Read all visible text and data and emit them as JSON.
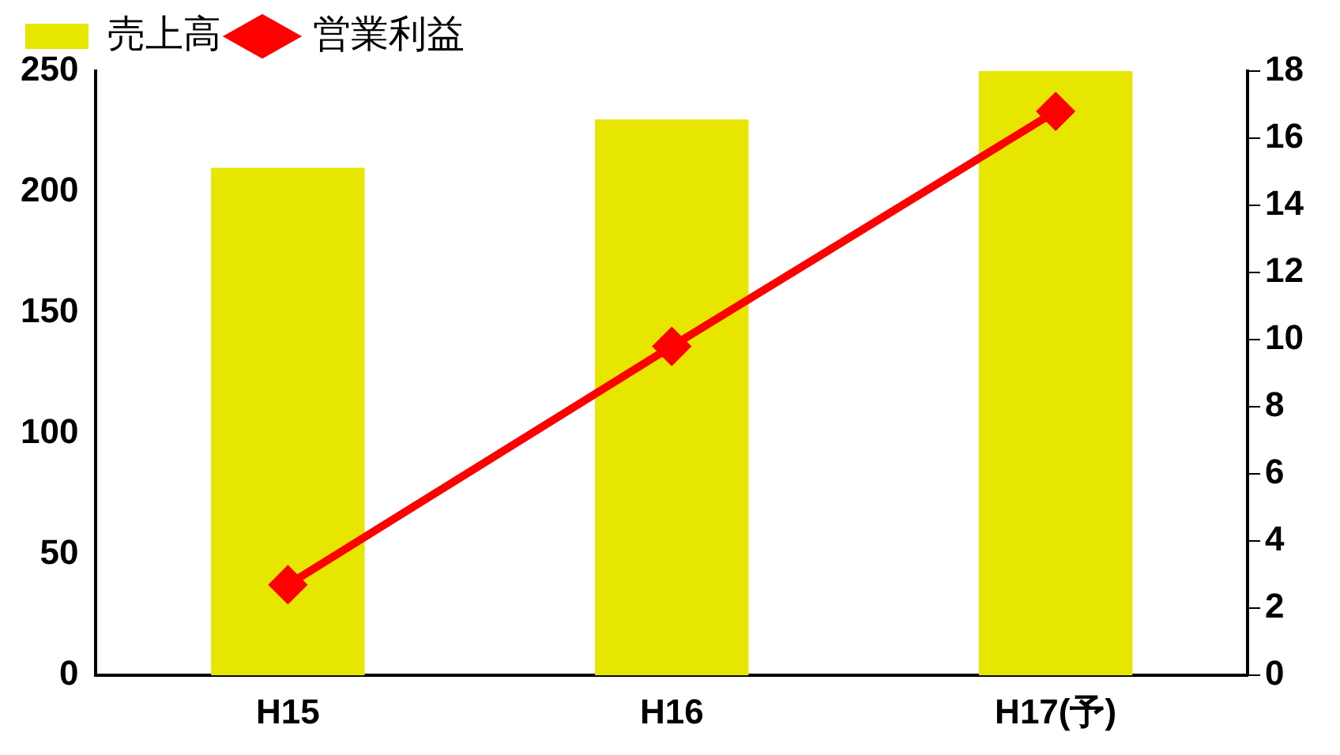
{
  "chart_data": {
    "type": "bar",
    "categories": [
      "H15",
      "H16",
      "H17(予)"
    ],
    "series": [
      {
        "name": "売上高",
        "color": "#e6e600",
        "values": [
          210,
          230,
          250
        ]
      },
      {
        "name": "営業利益",
        "type": "line",
        "axis": "y2",
        "color": "#ff0000",
        "values": [
          2.7,
          9.8,
          16.8
        ]
      }
    ],
    "ylim": [
      0,
      250
    ],
    "yticks": [
      0,
      50,
      100,
      150,
      200,
      250
    ],
    "y2lim": [
      0,
      18
    ],
    "y2ticks": [
      0,
      2,
      4,
      6,
      8,
      10,
      12,
      14,
      16,
      18
    ],
    "marker": "diamond",
    "grid": false,
    "legend": "top left"
  }
}
